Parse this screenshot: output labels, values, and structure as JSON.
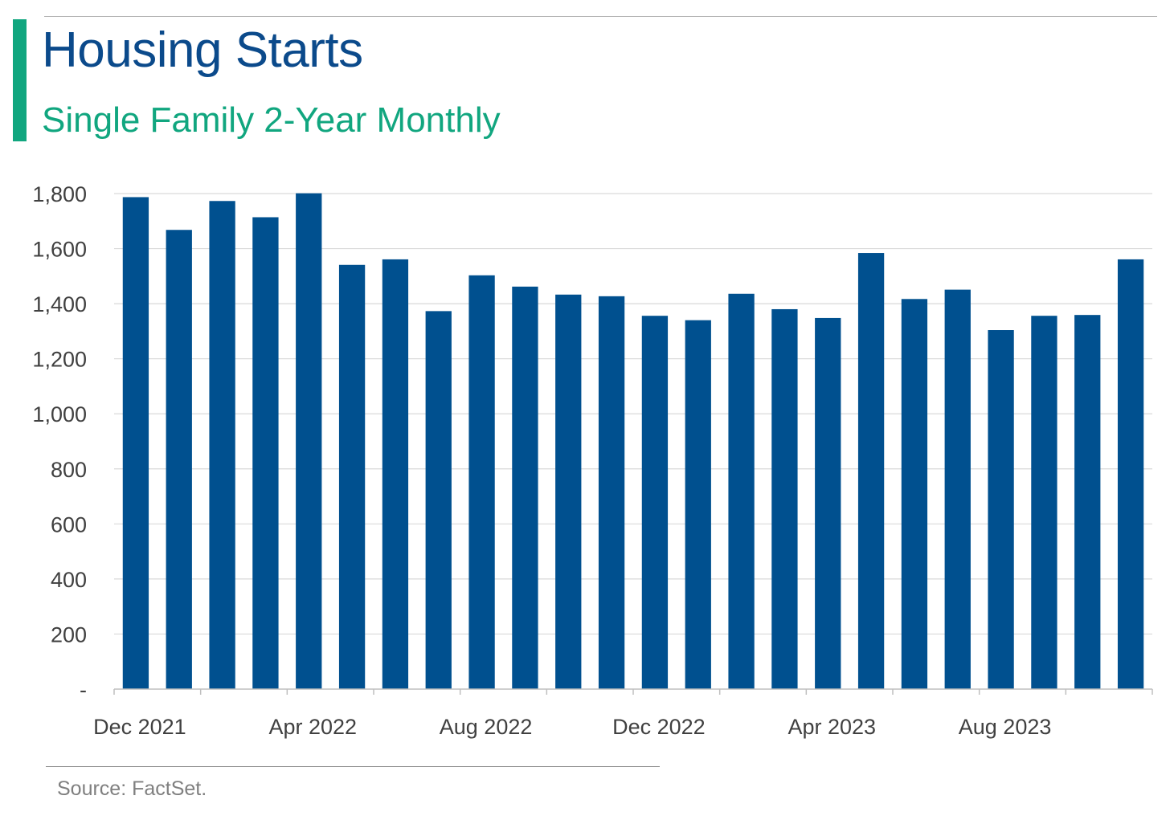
{
  "header": {
    "title": "Housing Starts",
    "subtitle": "Single Family 2-Year Monthly"
  },
  "footer": {
    "source": "Source: FactSet."
  },
  "colors": {
    "bar": "#00508f",
    "accent": "#11a67f",
    "title": "#0b4a8b"
  },
  "chart_data": {
    "type": "bar",
    "title": "Housing Starts",
    "subtitle": "Single Family 2-Year Monthly",
    "xlabel": "",
    "ylabel": "",
    "categories": [
      "Dec 2021",
      "Jan 2022",
      "Feb 2022",
      "Mar 2022",
      "Apr 2022",
      "May 2022",
      "Jun 2022",
      "Jul 2022",
      "Aug 2022",
      "Sep 2022",
      "Oct 2022",
      "Nov 2022",
      "Dec 2022",
      "Jan 2023",
      "Feb 2023",
      "Mar 2023",
      "Apr 2023",
      "May 2023",
      "Jun 2023",
      "Jul 2023",
      "Aug 2023",
      "Sep 2023",
      "Oct 2023",
      "Nov 2023"
    ],
    "x_tick_labels": [
      "Dec 2021",
      "Apr 2022",
      "Aug 2022",
      "Dec 2022",
      "Apr 2023",
      "Aug 2023"
    ],
    "x_tick_label_indices": [
      0,
      4,
      8,
      12,
      16,
      20
    ],
    "values": [
      1787,
      1668,
      1773,
      1714,
      1801,
      1541,
      1561,
      1373,
      1503,
      1462,
      1433,
      1427,
      1356,
      1340,
      1436,
      1380,
      1348,
      1584,
      1417,
      1451,
      1304,
      1356,
      1359,
      1561
    ],
    "ylim": [
      0,
      1800
    ],
    "y_ticks": [
      0,
      200,
      400,
      600,
      800,
      1000,
      1200,
      1400,
      1600,
      1800
    ],
    "y_tick_labels": [
      "-",
      "200",
      "400",
      "600",
      "800",
      "1,000",
      "1,200",
      "1,400",
      "1,600",
      "1,800"
    ],
    "grid": true,
    "legend": "none"
  }
}
